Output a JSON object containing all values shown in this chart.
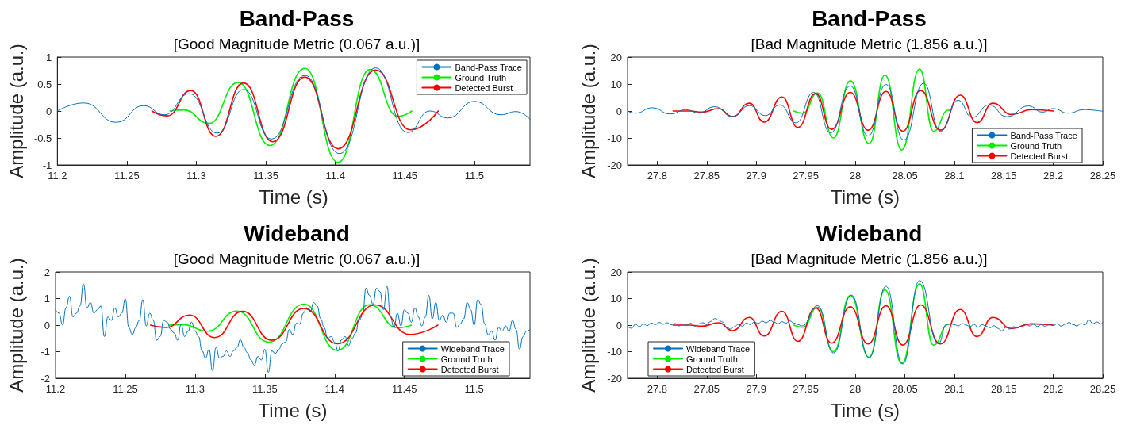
{
  "chart_data": [
    {
      "type": "line",
      "title": "Band-Pass",
      "subtitle": "[Good Magnitude Metric (0.067 a.u.)]",
      "xlabel": "Time (s)",
      "ylabel": "Amplitude (a.u.)",
      "xlim": [
        11.2,
        11.54
      ],
      "xticks": [
        11.2,
        11.25,
        11.3,
        11.35,
        11.4,
        11.45,
        11.5
      ],
      "ylim": [
        -1,
        1
      ],
      "yticks": [
        -1,
        -0.5,
        0,
        0.5,
        1
      ],
      "legend": "top right",
      "marker": "none",
      "line_style": "solid",
      "series": [
        {
          "name": "Band-Pass Trace",
          "color": "#0072bd",
          "x": [
            11.2,
            11.219,
            11.2425,
            11.262,
            11.277,
            11.295,
            11.315,
            11.334,
            11.354,
            11.378,
            11.403,
            11.429,
            11.452,
            11.468,
            11.481,
            11.5,
            11.519,
            11.53,
            11.54
          ],
          "values": [
            0,
            0.15,
            -0.21,
            0.1,
            -0.07,
            0.32,
            -0.41,
            0.4,
            -0.52,
            0.66,
            -0.79,
            0.8,
            -0.4,
            0,
            -0.13,
            0.18,
            -0.07,
            -0.01,
            -0.15
          ]
        },
        {
          "name": "Ground Truth",
          "color": "#00ee00",
          "x": [
            11.281,
            11.291,
            11.309,
            11.33,
            11.353,
            11.378,
            11.402,
            11.425,
            11.445,
            11.455
          ],
          "values": [
            0,
            0.02,
            -0.23,
            0.53,
            -0.64,
            0.79,
            -0.95,
            0.77,
            -0.1,
            0
          ]
        },
        {
          "name": "Detected Burst",
          "color": "#ff0000",
          "x": [
            11.268,
            11.279,
            11.296,
            11.314,
            11.334,
            11.355,
            11.378,
            11.402,
            11.429,
            11.454,
            11.474
          ],
          "values": [
            0,
            -0.09,
            0.38,
            -0.47,
            0.52,
            -0.57,
            0.63,
            -0.7,
            0.76,
            -0.35,
            0
          ]
        }
      ]
    },
    {
      "type": "line",
      "title": "Band-Pass",
      "subtitle": "[Bad Magnitude Metric (1.856 a.u.)]",
      "xlabel": "Time (s)",
      "ylabel": "Amplitude (a.u.)",
      "xlim": [
        27.77,
        28.25
      ],
      "xticks": [
        27.8,
        27.85,
        27.9,
        27.95,
        28,
        28.05,
        28.1,
        28.15,
        28.2,
        28.25
      ],
      "ylim": [
        -20,
        20
      ],
      "yticks": [
        -20,
        -10,
        0,
        10,
        20
      ],
      "legend": "bottom right",
      "marker": "none",
      "line_style": "solid",
      "series": [
        {
          "name": "Band-Pass Trace",
          "color": "#0072bd",
          "x": [
            27.77,
            27.778,
            27.795,
            27.813,
            27.829,
            27.842,
            27.858,
            27.876,
            27.893,
            27.909,
            27.924,
            27.94,
            27.958,
            27.975,
            27.995,
            28.013,
            28.031,
            28.049,
            28.069,
            28.086,
            28.104,
            28.118,
            28.135,
            28.153,
            28.175,
            28.189,
            28.2,
            28.215,
            28.231,
            28.25
          ],
          "values": [
            0,
            -0.8,
            1.2,
            -1.1,
            0.5,
            -0.7,
            1.6,
            -2.1,
            2,
            -1.7,
            2.3,
            -4.4,
            6.9,
            -8.1,
            9.3,
            -9.3,
            9.9,
            -10.8,
            10.3,
            -7.5,
            4,
            -2.4,
            2.3,
            -2.1,
            1.9,
            -0.4,
            0.9,
            -0.8,
            0.5,
            -0.1
          ]
        },
        {
          "name": "Ground Truth",
          "color": "#00ee00",
          "x": [
            27.938,
            27.947,
            27.962,
            27.978,
            27.995,
            28.014,
            28.03,
            28.047,
            28.065,
            28.079,
            28.094,
            28.096
          ],
          "values": [
            0,
            -0.8,
            6.7,
            -10,
            11.2,
            -12.1,
            13.3,
            -14.4,
            15.6,
            -7.5,
            0.3,
            0.3
          ]
        },
        {
          "name": "Detected Burst",
          "color": "#ff0000",
          "x": [
            27.816,
            27.833,
            27.845,
            27.862,
            27.876,
            27.893,
            27.908,
            27.926,
            27.942,
            27.96,
            27.976,
            27.995,
            28.013,
            28.031,
            28.048,
            28.066,
            28.086,
            28.106,
            28.123,
            28.139,
            28.158,
            28.178,
            28.2
          ],
          "values": [
            0,
            0,
            -0.4,
            0.9,
            -2.1,
            2.9,
            -4.1,
            5.2,
            -6.1,
            6.5,
            -6.8,
            6.9,
            -7.1,
            7.3,
            -7.5,
            7.6,
            -7.1,
            5.9,
            -4.3,
            2.9,
            -1.3,
            0.5,
            0
          ]
        }
      ]
    },
    {
      "type": "line",
      "title": "Wideband",
      "subtitle": "[Good Magnitude Metric (0.067 a.u.)]",
      "xlabel": "Time (s)",
      "ylabel": "Amplitude (a.u.)",
      "xlim": [
        11.2,
        11.54
      ],
      "xticks": [
        11.2,
        11.25,
        11.3,
        11.35,
        11.4,
        11.45,
        11.5
      ],
      "ylim": [
        -2,
        2
      ],
      "yticks": [
        -2,
        -1,
        0,
        1,
        2
      ],
      "legend": "bottom right",
      "marker": "none",
      "line_style": "solid",
      "series": [
        {
          "name": "Wideband Trace",
          "color": "#0072bd",
          "x": [
            11.2,
            11.2025,
            11.205,
            11.2075,
            11.21,
            11.2125,
            11.215,
            11.2175,
            11.22,
            11.2225,
            11.225,
            11.2275,
            11.23,
            11.2325,
            11.235,
            11.2375,
            11.24,
            11.2425,
            11.245,
            11.2475,
            11.25,
            11.2525,
            11.255,
            11.2575,
            11.26,
            11.2625,
            11.265,
            11.2675,
            11.27,
            11.2725,
            11.275,
            11.2775,
            11.28,
            11.2825,
            11.285,
            11.2875,
            11.29,
            11.2925,
            11.295,
            11.2975,
            11.3,
            11.3025,
            11.305,
            11.3075,
            11.31,
            11.3125,
            11.315,
            11.3175,
            11.32,
            11.3225,
            11.325,
            11.3275,
            11.33,
            11.3325,
            11.335,
            11.3375,
            11.34,
            11.3425,
            11.345,
            11.3475,
            11.35,
            11.3525,
            11.355,
            11.3575,
            11.36,
            11.3625,
            11.365,
            11.3675,
            11.37,
            11.3725,
            11.375,
            11.3775,
            11.38,
            11.3825,
            11.385,
            11.3875,
            11.39,
            11.3925,
            11.395,
            11.3975,
            11.4,
            11.4025,
            11.405,
            11.4075,
            11.41,
            11.4125,
            11.415,
            11.4175,
            11.42,
            11.4225,
            11.425,
            11.4275,
            11.43,
            11.4325,
            11.435,
            11.4375,
            11.44,
            11.4425,
            11.445,
            11.4475,
            11.45,
            11.4525,
            11.455,
            11.4575,
            11.46,
            11.4625,
            11.465,
            11.4675,
            11.47,
            11.4725,
            11.475,
            11.4775,
            11.48,
            11.4825,
            11.485,
            11.4875,
            11.49,
            11.4925,
            11.495,
            11.4975,
            11.5,
            11.5025,
            11.505,
            11.5075,
            11.51,
            11.5125,
            11.515,
            11.5175,
            11.52,
            11.5225,
            11.525,
            11.5275,
            11.53,
            11.5325,
            11.535,
            11.5375,
            11.54
          ],
          "values": [
            0.58,
            0.45,
            0,
            0.65,
            1.09,
            0.31,
            0.45,
            0.72,
            1.55,
            0.65,
            0.85,
            0.45,
            0.58,
            0.72,
            -0.43,
            0.31,
            0.18,
            0.65,
            0.31,
            0.45,
            0.99,
            -0.09,
            -0.36,
            -0.09,
            0.18,
            0.96,
            -0.03,
            0.45,
            0.18,
            -0.57,
            -0.43,
            0.18,
            0.11,
            -0.16,
            -0.3,
            -0.57,
            0.04,
            -0.43,
            -0.23,
            0.11,
            -0.23,
            -0.43,
            -0.97,
            -1.24,
            -0.91,
            -1.72,
            -0.84,
            -1.24,
            -1.18,
            -0.97,
            -1.18,
            -0.97,
            -0.84,
            -0.55,
            -0.84,
            -1.04,
            -1.31,
            -1.51,
            -1.18,
            -1.31,
            -0.91,
            -1.78,
            -0.97,
            -1.07,
            -0.91,
            -0.7,
            -0.63,
            -0.16,
            -0.36,
            0.07,
            0.04,
            0.45,
            0.65,
            0.51,
            0.85,
            0.72,
            0.24,
            -0.09,
            -0.5,
            -0.43,
            -0.64,
            -0.97,
            -0.55,
            -0.43,
            -0.77,
            -0.5,
            -0.3,
            0.18,
            0.35,
            1.39,
            1.12,
            0.78,
            1.39,
            1.26,
            0.58,
            1.46,
            0.31,
            -0.09,
            0.45,
            -0.03,
            0.58,
            0.45,
            0.11,
            0.65,
            0.31,
            -0.03,
            0.31,
            1.12,
            0.24,
            0.85,
            0.18,
            0.38,
            0.11,
            0.45,
            0.45,
            -0.09,
            0.05,
            0.24,
            0.85,
            0.58,
            0,
            0.96,
            0.78,
            0.05,
            -0.36,
            -0.23,
            -0.57,
            -0.09,
            -0.23,
            -0.03,
            -0.23,
            0.18,
            -0.16,
            -0.91,
            -0.43,
            -0.23,
            -0.16
          ]
        },
        {
          "name": "Ground Truth",
          "color": "#00ee00",
          "x": [
            11.281,
            11.291,
            11.309,
            11.33,
            11.353,
            11.378,
            11.402,
            11.425,
            11.445,
            11.455
          ],
          "values": [
            0,
            0.02,
            -0.23,
            0.53,
            -0.64,
            0.79,
            -0.95,
            0.77,
            -0.1,
            0
          ]
        },
        {
          "name": "Detected Burst",
          "color": "#ff0000",
          "x": [
            11.268,
            11.279,
            11.296,
            11.314,
            11.334,
            11.355,
            11.378,
            11.402,
            11.429,
            11.454,
            11.474
          ],
          "values": [
            0,
            -0.09,
            0.38,
            -0.47,
            0.52,
            -0.57,
            0.63,
            -0.7,
            0.76,
            -0.35,
            0
          ]
        }
      ]
    },
    {
      "type": "line",
      "title": "Wideband",
      "subtitle": "[Bad Magnitude Metric (1.856 a.u.)]",
      "xlabel": "Time (s)",
      "ylabel": "Amplitude (a.u.)",
      "xlim": [
        27.77,
        28.25
      ],
      "xticks": [
        27.8,
        27.85,
        27.9,
        27.95,
        28,
        28.05,
        28.1,
        28.15,
        28.2,
        28.25
      ],
      "ylim": [
        -20,
        20
      ],
      "yticks": [
        -20,
        -10,
        0,
        10,
        20
      ],
      "legend": "bottom left",
      "marker": "none",
      "line_style": "solid",
      "series": [
        {
          "name": "Wideband Trace",
          "color": "#0072bd",
          "x": [
            27.77,
            27.774,
            27.778,
            27.782,
            27.786,
            27.79,
            27.794,
            27.798,
            27.802,
            27.806,
            27.81,
            27.814,
            27.818,
            27.822,
            27.826,
            27.83,
            27.834,
            27.838,
            27.842,
            27.846,
            27.85,
            27.854,
            27.858,
            27.862,
            27.866,
            27.87,
            27.874,
            27.878,
            27.882,
            27.886,
            27.89,
            27.894,
            27.898,
            27.902,
            27.906,
            27.91,
            27.914,
            27.918,
            27.922,
            27.926,
            27.93,
            27.934,
            27.938,
            27.942,
            27.946,
            27.962,
            27.978,
            27.996,
            28.014,
            28.031,
            28.048,
            28.065,
            28.084,
            28.092,
            28.096,
            28.1,
            28.104,
            28.108,
            28.112,
            28.116,
            28.12,
            28.124,
            28.128,
            28.132,
            28.136,
            28.14,
            28.144,
            28.148,
            28.152,
            28.156,
            28.16,
            28.164,
            28.168,
            28.172,
            28.176,
            28.18,
            28.184,
            28.188,
            28.192,
            28.196,
            28.2,
            28.204,
            28.208,
            28.212,
            28.216,
            28.22,
            28.224,
            28.228,
            28.232,
            28.236,
            28.24,
            28.244,
            28.248,
            28.25
          ],
          "values": [
            -0.5,
            -1.2,
            0.3,
            -0.6,
            0.4,
            -0.2,
            0.8,
            0.2,
            1,
            0.3,
            0.9,
            0.1,
            0.6,
            -0.3,
            0.4,
            0,
            0.7,
            -0.4,
            0.5,
            0.9,
            0.2,
            1.4,
            2.5,
            1.9,
            1.2,
            -0.8,
            -1.5,
            -0.6,
            0.3,
            -0.4,
            0.8,
            0.2,
            1.2,
            0.6,
            1.5,
            0.9,
            1.8,
            1.1,
            0.5,
            1.3,
            0.7,
            1.6,
            0.8,
            0.2,
            -0.3,
            7.3,
            -10.5,
            11.3,
            -12.3,
            14.6,
            -14.6,
            16.8,
            -7,
            0.2,
            0.5,
            0.2,
            -0.3,
            0.6,
            0,
            -0.5,
            0.3,
            -0.8,
            0.2,
            -0.4,
            -1,
            -0.2,
            -1.2,
            -2.2,
            -0.9,
            -1.5,
            -0.6,
            -1.1,
            -0.2,
            0.4,
            -0.3,
            0.3,
            -0.5,
            0.2,
            -0.6,
            0.4,
            -0.2,
            0.5,
            -0.4,
            0.3,
            1,
            0.2,
            -0.3,
            0.6,
            0.1,
            2,
            0.5,
            1.2,
            0.4,
            1
          ]
        },
        {
          "name": "Ground Truth",
          "color": "#00ee00",
          "x": [
            27.938,
            27.947,
            27.962,
            27.978,
            27.995,
            28.014,
            28.03,
            28.047,
            28.065,
            28.079,
            28.094,
            28.096
          ],
          "values": [
            0,
            -0.8,
            6.7,
            -10,
            11.2,
            -12.1,
            13.3,
            -14.4,
            15.6,
            -7.5,
            0.3,
            0.3
          ]
        },
        {
          "name": "Detected Burst",
          "color": "#ff0000",
          "x": [
            27.816,
            27.833,
            27.845,
            27.862,
            27.876,
            27.893,
            27.908,
            27.926,
            27.942,
            27.96,
            27.976,
            27.995,
            28.013,
            28.031,
            28.048,
            28.066,
            28.086,
            28.106,
            28.123,
            28.139,
            28.158,
            28.178,
            28.2
          ],
          "values": [
            0,
            0,
            -0.4,
            0.9,
            -2.1,
            2.9,
            -4.1,
            5.2,
            -6.1,
            6.5,
            -6.8,
            6.9,
            -7.1,
            7.3,
            -7.5,
            7.6,
            -7.1,
            5.9,
            -4.3,
            2.9,
            -1.3,
            0.5,
            0
          ]
        }
      ]
    }
  ]
}
